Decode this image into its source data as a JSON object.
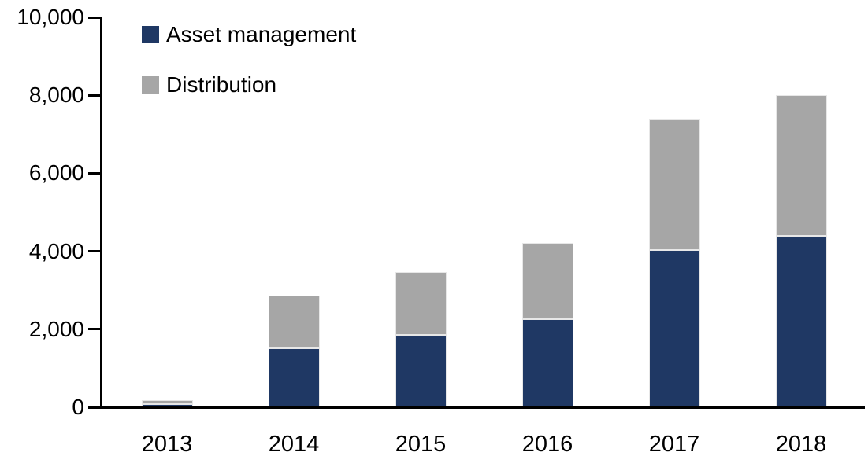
{
  "chart_data": {
    "type": "bar",
    "stacked": true,
    "title": "",
    "xlabel": "",
    "ylabel": "",
    "categories": [
      "2013",
      "2014",
      "2015",
      "2016",
      "2017",
      "2018"
    ],
    "series": [
      {
        "name": "Asset management",
        "color": "#1F3864",
        "values": [
          80,
          1520,
          1860,
          2260,
          4030,
          4400
        ]
      },
      {
        "name": "Distribution",
        "color": "#A6A6A6",
        "values": [
          100,
          1340,
          1610,
          1960,
          3360,
          3610
        ]
      }
    ],
    "stack_totals": [
      180,
      2860,
      3470,
      4220,
      7390,
      8010
    ],
    "ylim": [
      0,
      10000
    ],
    "ytick_interval": 2000,
    "ytick_labels": [
      "0",
      "2,000",
      "4,000",
      "6,000",
      "8,000",
      "10,000"
    ],
    "grid": false,
    "legend_position": "top-left-inside",
    "axis_color": "#000000",
    "text_color": "#000000"
  }
}
